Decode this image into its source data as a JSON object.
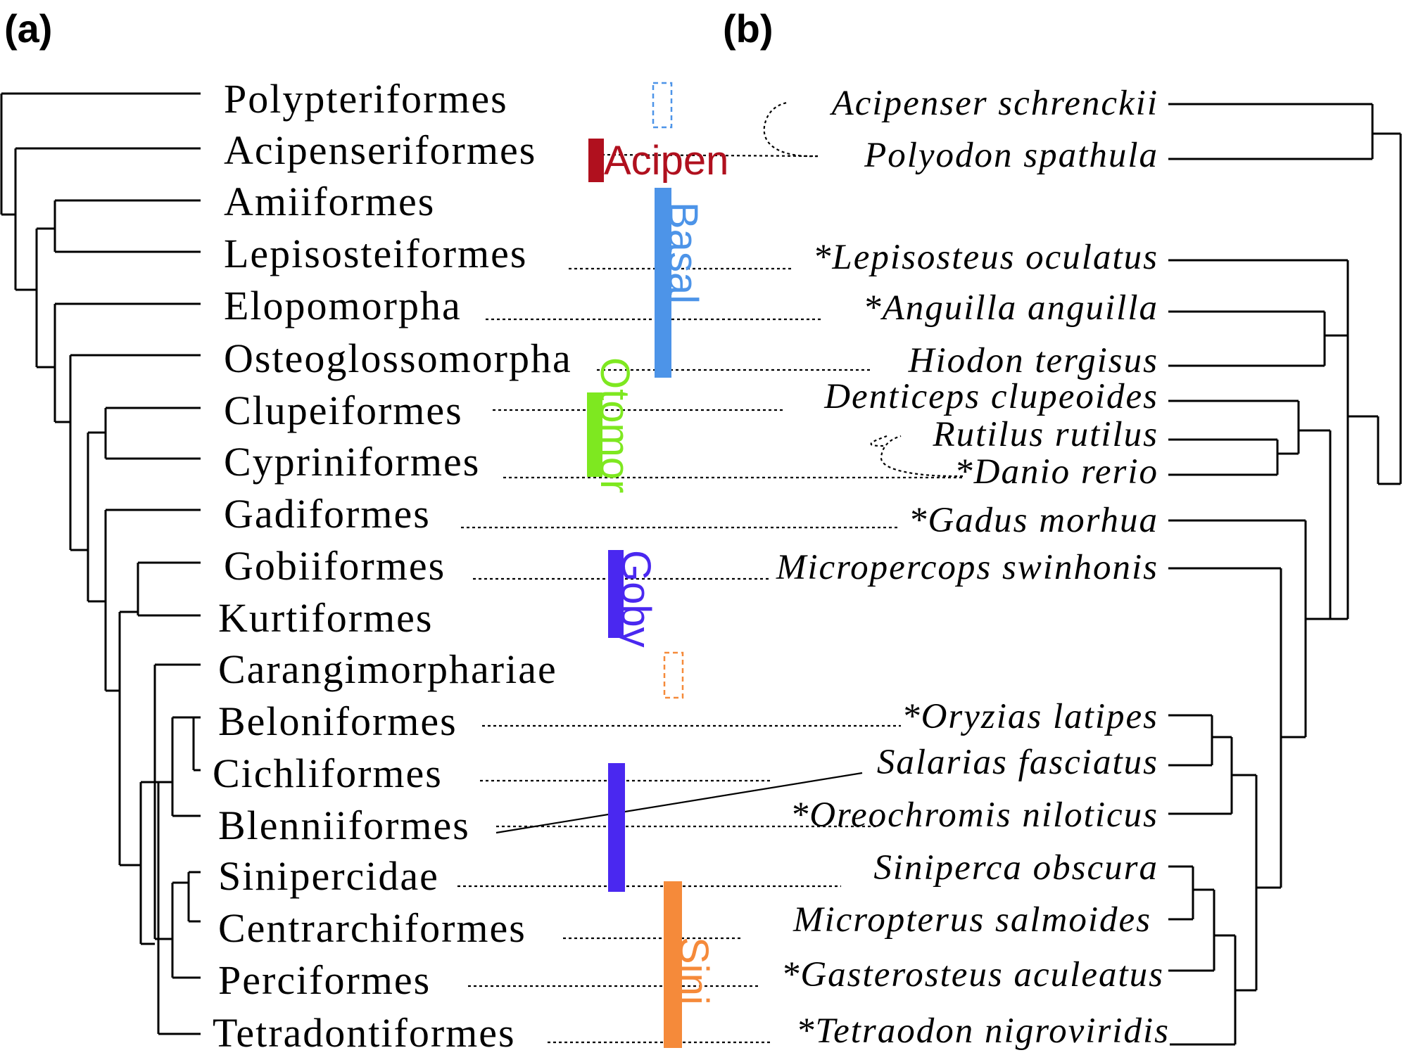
{
  "panels": {
    "a": "(a)",
    "b": "(b)"
  },
  "orders": [
    "Polypteriformes",
    "Acipenseriformes",
    "Amiiformes",
    "Lepisosteiformes",
    "Elopomorpha",
    "Osteoglossomorpha",
    "Clupeiformes",
    "Cypriniformes",
    "Gadiformes",
    "Gobiiformes",
    "Kurtiformes",
    "Carangimorphariae",
    "Beloniformes",
    "Cichliformes",
    "Blenniiformes",
    "Sinipercidae",
    "Centrarchiformes",
    "Perciformes",
    "Tetradontiformes"
  ],
  "species": [
    "Acipenser schrenckii",
    "Polyodon spathula",
    "*Lepisosteus oculatus",
    "*Anguilla anguilla",
    "Hiodon tergisus",
    "Denticeps clupeoides",
    "Rutilus rutilus",
    "*Danio rerio",
    "*Gadus morhua",
    "Micropercops swinhonis",
    "*Oryzias latipes",
    "Salarias fasciatus",
    "*Oreochromis niloticus",
    "Siniperca obscura",
    "Micropterus salmoides",
    "*Gasterosteus aculeatus",
    "*Tetraodon nigroviridis"
  ],
  "groups": [
    {
      "label": "Acipen",
      "color": "#b0101e"
    },
    {
      "label": "Basal",
      "color": "#4d94e8"
    },
    {
      "label": "Otomor",
      "color": "#7ee820"
    },
    {
      "label": "Goby",
      "color": "#4a28f0"
    },
    {
      "label": "Sini",
      "color": "#f58a3a"
    }
  ]
}
